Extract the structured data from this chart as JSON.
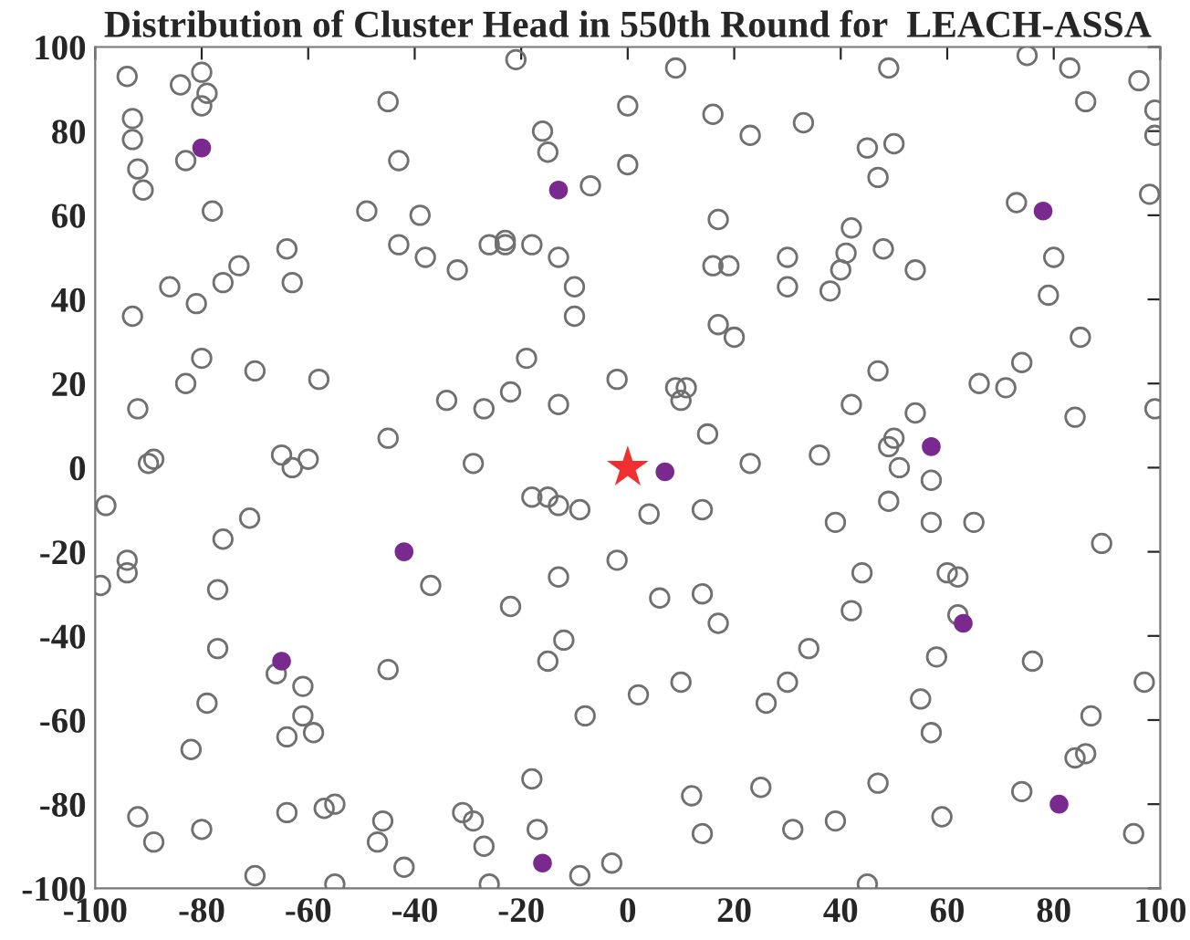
{
  "chart_data": {
    "type": "scatter",
    "title": "Distribution of Cluster Head in 550th Round for  LEACH-ASSA",
    "xlim": [
      -100,
      100
    ],
    "ylim": [
      -100,
      100
    ],
    "xticks": [
      -100,
      -80,
      -60,
      -40,
      -20,
      0,
      20,
      40,
      60,
      80,
      100
    ],
    "yticks": [
      -100,
      -80,
      -60,
      -40,
      -20,
      0,
      20,
      40,
      60,
      80,
      100
    ],
    "grid": false,
    "legend": false,
    "series": [
      {
        "color": "#707070",
        "marker": "circle",
        "x": [
          -94,
          -84,
          -80,
          -79,
          -80,
          -93,
          -93,
          -83,
          -92,
          -91,
          -78,
          -49,
          -39,
          -43,
          -38,
          -45,
          -43,
          -64,
          -63,
          -73,
          -76,
          -86,
          -81,
          -93,
          -80,
          -83,
          -70,
          -58,
          -92,
          -34,
          -45,
          -90,
          -89,
          -65,
          -63,
          -60,
          -32,
          -21,
          9,
          0,
          16,
          23,
          33,
          -16,
          -15,
          0,
          -7,
          17,
          -26,
          -23,
          -23,
          -18,
          -13,
          30,
          16,
          19,
          30,
          -10,
          -10,
          17,
          20,
          -19,
          -2,
          9,
          11,
          10,
          -27,
          -22,
          -13,
          15,
          -29,
          23,
          36,
          49,
          75,
          83,
          96,
          86,
          99,
          99,
          45,
          50,
          47,
          98,
          73,
          42,
          41,
          48,
          40,
          54,
          38,
          80,
          79,
          85,
          74,
          66,
          71,
          47,
          42,
          54,
          84,
          99,
          50,
          49,
          51,
          57,
          -98,
          -71,
          -76,
          -94,
          -94,
          -99,
          -37,
          -77,
          -77,
          -66,
          -61,
          -45,
          -79,
          -61,
          -64,
          -59,
          -82,
          -92,
          -89,
          -80,
          -64,
          -57,
          -55,
          -70,
          -55,
          -46,
          -47,
          -42,
          -31,
          -18,
          -15,
          -13,
          -9,
          4,
          14,
          -2,
          -13,
          -22,
          6,
          14,
          17,
          34,
          -12,
          -15,
          10,
          2,
          -8,
          30,
          26,
          -18,
          12,
          25,
          -29,
          -17,
          -27,
          14,
          31,
          -9,
          -3,
          -26,
          49,
          39,
          57,
          65,
          89,
          44,
          60,
          62,
          42,
          62,
          58,
          76,
          97,
          55,
          57,
          87,
          84,
          86,
          47,
          74,
          95,
          39,
          59,
          45
        ],
        "values": [
          93,
          91,
          94,
          89,
          86,
          83,
          78,
          73,
          71,
          66,
          61,
          61,
          60,
          53,
          50,
          87,
          73,
          52,
          44,
          48,
          44,
          43,
          39,
          36,
          26,
          20,
          23,
          21,
          14,
          16,
          7,
          1,
          2,
          3,
          0,
          2,
          47,
          97,
          95,
          86,
          84,
          79,
          82,
          80,
          75,
          72,
          67,
          59,
          53,
          53,
          54,
          53,
          50,
          50,
          48,
          48,
          43,
          43,
          36,
          34,
          31,
          26,
          21,
          19,
          19,
          16,
          14,
          18,
          15,
          8,
          1,
          1,
          3,
          95,
          98,
          95,
          92,
          87,
          85,
          79,
          76,
          77,
          69,
          65,
          63,
          57,
          51,
          52,
          47,
          47,
          42,
          50,
          41,
          31,
          25,
          20,
          19,
          23,
          15,
          13,
          12,
          14,
          7,
          5,
          0,
          -3,
          -9,
          -12,
          -17,
          -22,
          -25,
          -28,
          -28,
          -29,
          -43,
          -49,
          -52,
          -48,
          -56,
          -59,
          -64,
          -63,
          -67,
          -83,
          -89,
          -86,
          -82,
          -81,
          -80,
          -97,
          -99,
          -84,
          -89,
          -95,
          -82,
          -7,
          -7,
          -9,
          -10,
          -11,
          -10,
          -22,
          -26,
          -33,
          -31,
          -30,
          -37,
          -43,
          -41,
          -46,
          -51,
          -54,
          -59,
          -51,
          -56,
          -74,
          -78,
          -76,
          -84,
          -86,
          -90,
          -87,
          -86,
          -97,
          -94,
          -99,
          -8,
          -13,
          -13,
          -13,
          -18,
          -25,
          -25,
          -26,
          -34,
          -35,
          -45,
          -46,
          -51,
          -55,
          -63,
          -59,
          -69,
          -68,
          -75,
          -77,
          -87,
          -84,
          -83,
          -99
        ]
      },
      {
        "color": "#7a2a8e",
        "marker": "circle",
        "x": [
          -80,
          -13,
          78,
          57,
          7,
          -42,
          -65,
          63,
          81,
          -16
        ],
        "values": [
          76,
          66,
          61,
          5,
          -1,
          -20,
          -46,
          -37,
          -80,
          -94
        ]
      },
      {
        "color": "#f03030",
        "marker": "star",
        "x": [
          0
        ],
        "values": [
          0
        ]
      }
    ]
  }
}
